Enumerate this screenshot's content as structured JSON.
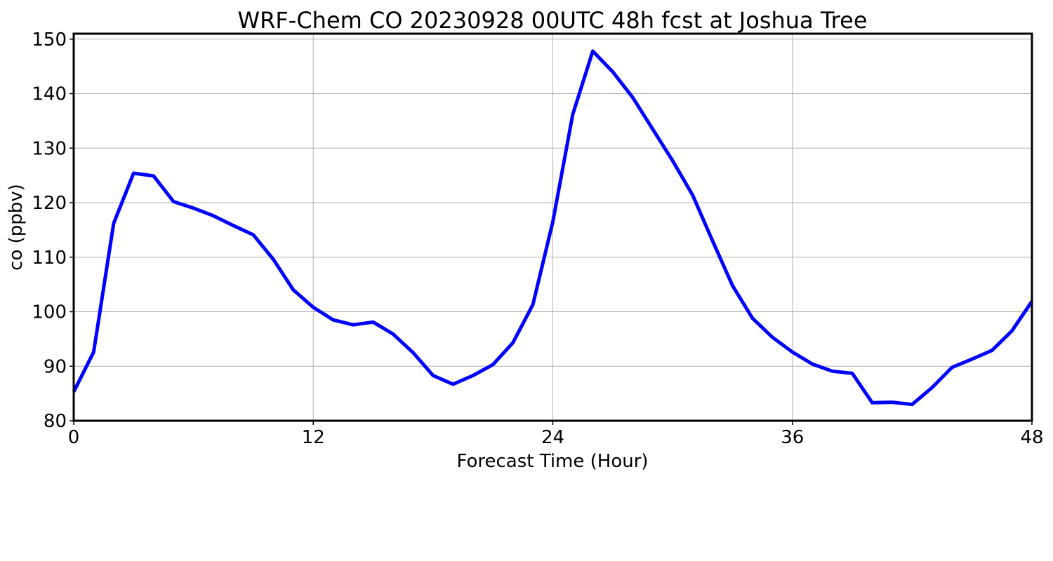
{
  "chart_data": {
    "type": "line",
    "title": "WRF-Chem CO  20230928 00UTC 48h fcst at Joshua Tree",
    "xlabel": "Forecast Time (Hour)",
    "ylabel": "co  (ppbv)",
    "xlim": [
      0,
      48
    ],
    "ylim": [
      80,
      151
    ],
    "xticks": [
      0,
      12,
      24,
      36,
      48
    ],
    "yticks": [
      80,
      90,
      100,
      110,
      120,
      130,
      140,
      150
    ],
    "grid": true,
    "series": [
      {
        "color": "#0000ff",
        "x": [
          0,
          1,
          2,
          3,
          4,
          5,
          6,
          7,
          8,
          9,
          10,
          11,
          12,
          13,
          14,
          15,
          16,
          17,
          18,
          19,
          20,
          21,
          22,
          23,
          24,
          25,
          26,
          27,
          28,
          29,
          30,
          31,
          32,
          33,
          34,
          35,
          36,
          37,
          38,
          39,
          40,
          41,
          42,
          43,
          44,
          45,
          46,
          47,
          48
        ],
        "values": [
          85.3,
          92.6,
          116.2,
          125.4,
          124.9,
          120.2,
          119.0,
          117.6,
          115.8,
          114.1,
          109.6,
          104.0,
          100.8,
          98.5,
          97.6,
          98.1,
          95.9,
          92.5,
          88.3,
          86.7,
          88.3,
          90.3,
          94.3,
          101.3,
          116.5,
          136.2,
          147.8,
          144.0,
          139.3,
          133.5,
          127.7,
          121.4,
          113.0,
          104.8,
          98.8,
          95.3,
          92.6,
          90.4,
          89.1,
          88.7,
          83.3,
          83.4,
          83.0,
          86.1,
          89.8,
          91.3,
          92.9,
          96.5,
          101.9
        ]
      }
    ]
  }
}
